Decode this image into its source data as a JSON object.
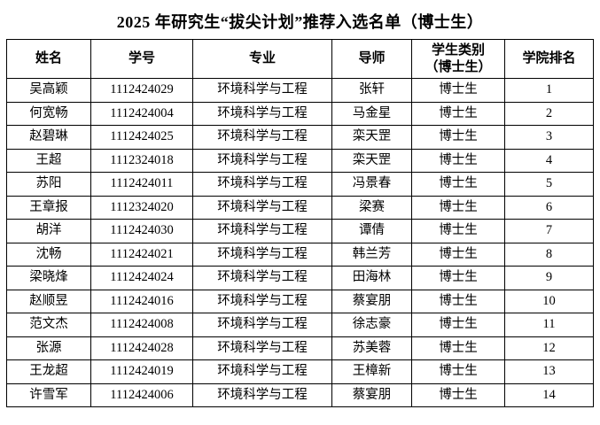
{
  "title": "2025 年研究生“拔尖计划”推荐入选名单（博士生）",
  "table": {
    "headers": {
      "name": "姓名",
      "student_id": "学号",
      "major": "专业",
      "advisor": "导师",
      "category_line1": "学生类别",
      "category_line2": "（博士生）",
      "college_rank": "学院排名"
    },
    "rows": [
      [
        "吴高颖",
        "1112424029",
        "环境科学与工程",
        "张轩",
        "博士生",
        "1"
      ],
      [
        "何宽畅",
        "1112424004",
        "环境科学与工程",
        "马金星",
        "博士生",
        "2"
      ],
      [
        "赵碧琳",
        "1112424025",
        "环境科学与工程",
        "栾天罡",
        "博士生",
        "3"
      ],
      [
        "王超",
        "1112324018",
        "环境科学与工程",
        "栾天罡",
        "博士生",
        "4"
      ],
      [
        "苏阳",
        "1112424011",
        "环境科学与工程",
        "冯景春",
        "博士生",
        "5"
      ],
      [
        "王章报",
        "1112324020",
        "环境科学与工程",
        "梁赛",
        "博士生",
        "6"
      ],
      [
        "胡洋",
        "1112424030",
        "环境科学与工程",
        "谭倩",
        "博士生",
        "7"
      ],
      [
        "沈畅",
        "1112424021",
        "环境科学与工程",
        "韩兰芳",
        "博士生",
        "8"
      ],
      [
        "梁晓烽",
        "1112424024",
        "环境科学与工程",
        "田海林",
        "博士生",
        "9"
      ],
      [
        "赵顺昱",
        "1112424016",
        "环境科学与工程",
        "蔡宴朋",
        "博士生",
        "10"
      ],
      [
        "范文杰",
        "1112424008",
        "环境科学与工程",
        "徐志豪",
        "博士生",
        "11"
      ],
      [
        "张源",
        "1112424028",
        "环境科学与工程",
        "苏美蓉",
        "博士生",
        "12"
      ],
      [
        "王龙超",
        "1112424019",
        "环境科学与工程",
        "王樟新",
        "博士生",
        "13"
      ],
      [
        "许雪军",
        "1112424006",
        "环境科学与工程",
        "蔡宴朋",
        "博士生",
        "14"
      ]
    ]
  }
}
